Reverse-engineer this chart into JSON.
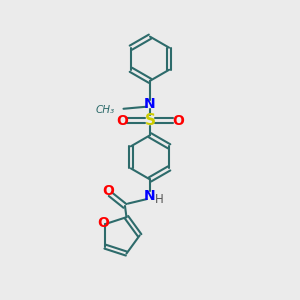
{
  "bg_color": "#ebebeb",
  "bond_color": "#2d6b6b",
  "N_color": "#0000ff",
  "O_color": "#ff0000",
  "S_color": "#cccc00",
  "line_width": 1.5,
  "font_size": 10,
  "fig_w": 3.0,
  "fig_h": 3.0,
  "dpi": 100,
  "xlim": [
    0,
    10
  ],
  "ylim": [
    0,
    10
  ]
}
